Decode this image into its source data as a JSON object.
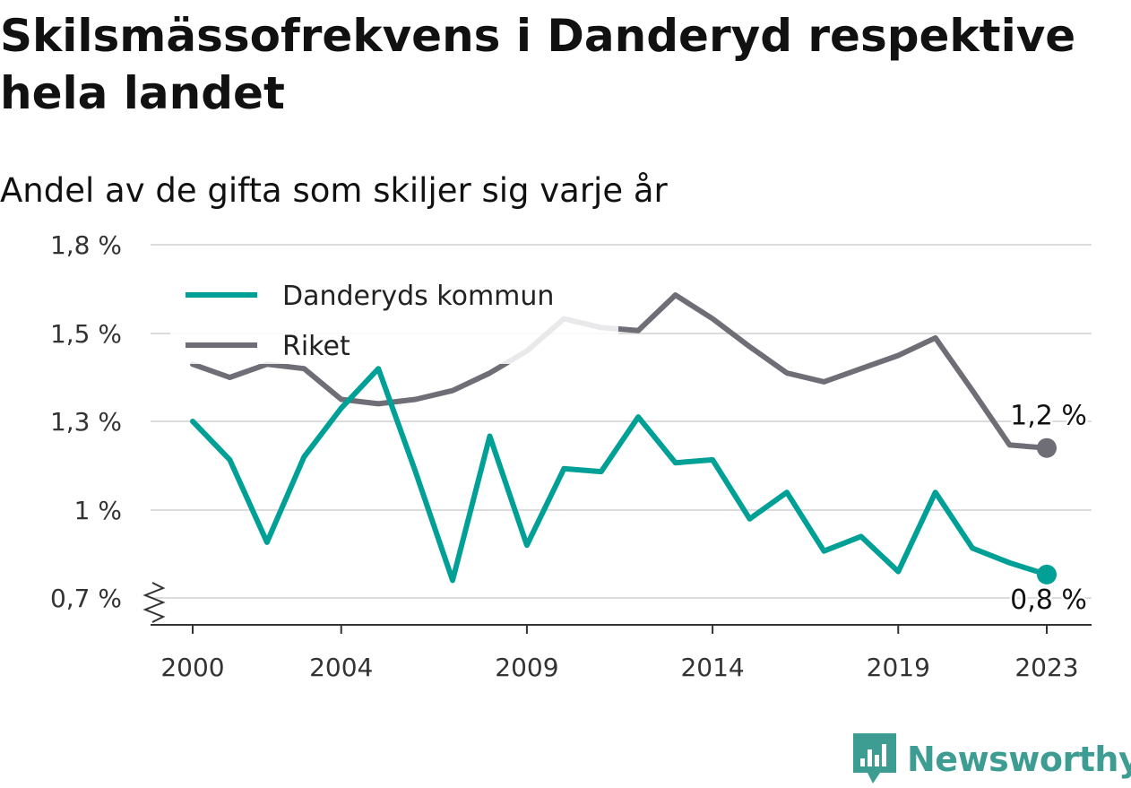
{
  "title": "Skilsmässofrekvens i Danderyd respektive hela landet",
  "subtitle": "Andel av de gifta som skiljer sig varje år",
  "brand": {
    "name": "Newsworthy",
    "color": "#3e9d92"
  },
  "chart_data": {
    "type": "line",
    "x": [
      2000,
      2001,
      2002,
      2003,
      2004,
      2005,
      2006,
      2007,
      2008,
      2009,
      2010,
      2011,
      2012,
      2013,
      2014,
      2015,
      2016,
      2017,
      2018,
      2019,
      2020,
      2021,
      2022,
      2023
    ],
    "series": [
      {
        "name": "Danderyds kommun",
        "color": "#00a096",
        "values": [
          1.3,
          1.17,
          0.89,
          1.18,
          1.33,
          1.42,
          1.13,
          0.76,
          1.25,
          0.88,
          1.14,
          1.13,
          1.31,
          1.16,
          1.17,
          0.97,
          1.06,
          0.86,
          0.91,
          0.79,
          1.06,
          0.87,
          0.82,
          0.78
        ]
      },
      {
        "name": "Riket",
        "color": "#6f6e77",
        "values": [
          1.43,
          1.4,
          1.43,
          1.42,
          1.35,
          1.34,
          1.35,
          1.37,
          1.41,
          1.46,
          1.55,
          1.52,
          1.51,
          1.63,
          1.55,
          1.47,
          1.41,
          1.39,
          1.42,
          1.45,
          1.49,
          1.37,
          1.22,
          1.21
        ]
      }
    ],
    "yticks": [
      0.7,
      1.0,
      1.3,
      1.5,
      1.8
    ],
    "ytick_labels": [
      "0,7 %",
      "1 %",
      "1,3 %",
      "1,5 %",
      "1,8 %"
    ],
    "xticks": [
      2000,
      2004,
      2009,
      2014,
      2019,
      2023
    ],
    "xtick_labels": [
      "2000",
      "2004",
      "2009",
      "2014",
      "2019",
      "2023"
    ],
    "ylim": [
      0.6,
      1.9
    ],
    "end_labels": [
      "1,2 %",
      "0,8 %"
    ],
    "legend_placement": "top-left",
    "grid": true
  }
}
